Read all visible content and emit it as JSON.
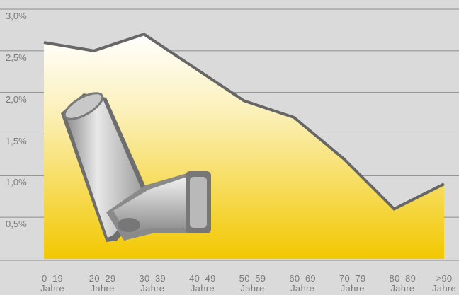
{
  "chart_data": {
    "type": "area",
    "categories": [
      "0–19\nJahre",
      "20–29\nJahre",
      "30–39\nJahre",
      "40–49\nJahre",
      "50–59\nJahre",
      "60–69\nJahre",
      "70–79\nJahre",
      "80–89\nJahre",
      ">90\nJahre"
    ],
    "values": [
      2.6,
      2.5,
      2.7,
      2.3,
      1.9,
      1.7,
      1.2,
      0.6,
      0.9
    ],
    "color": "#666666",
    "ylim": [
      0,
      3.0
    ],
    "yticks": [
      {
        "value": 0.5,
        "label": "0,5%"
      },
      {
        "value": 1.0,
        "label": "1,0%"
      },
      {
        "value": 1.5,
        "label": "1,5%"
      },
      {
        "value": 2.0,
        "label": "2,0%"
      },
      {
        "value": 2.5,
        "label": "2,5%"
      },
      {
        "value": 3.0,
        "label": "3,0%"
      }
    ],
    "grid": true
  }
}
